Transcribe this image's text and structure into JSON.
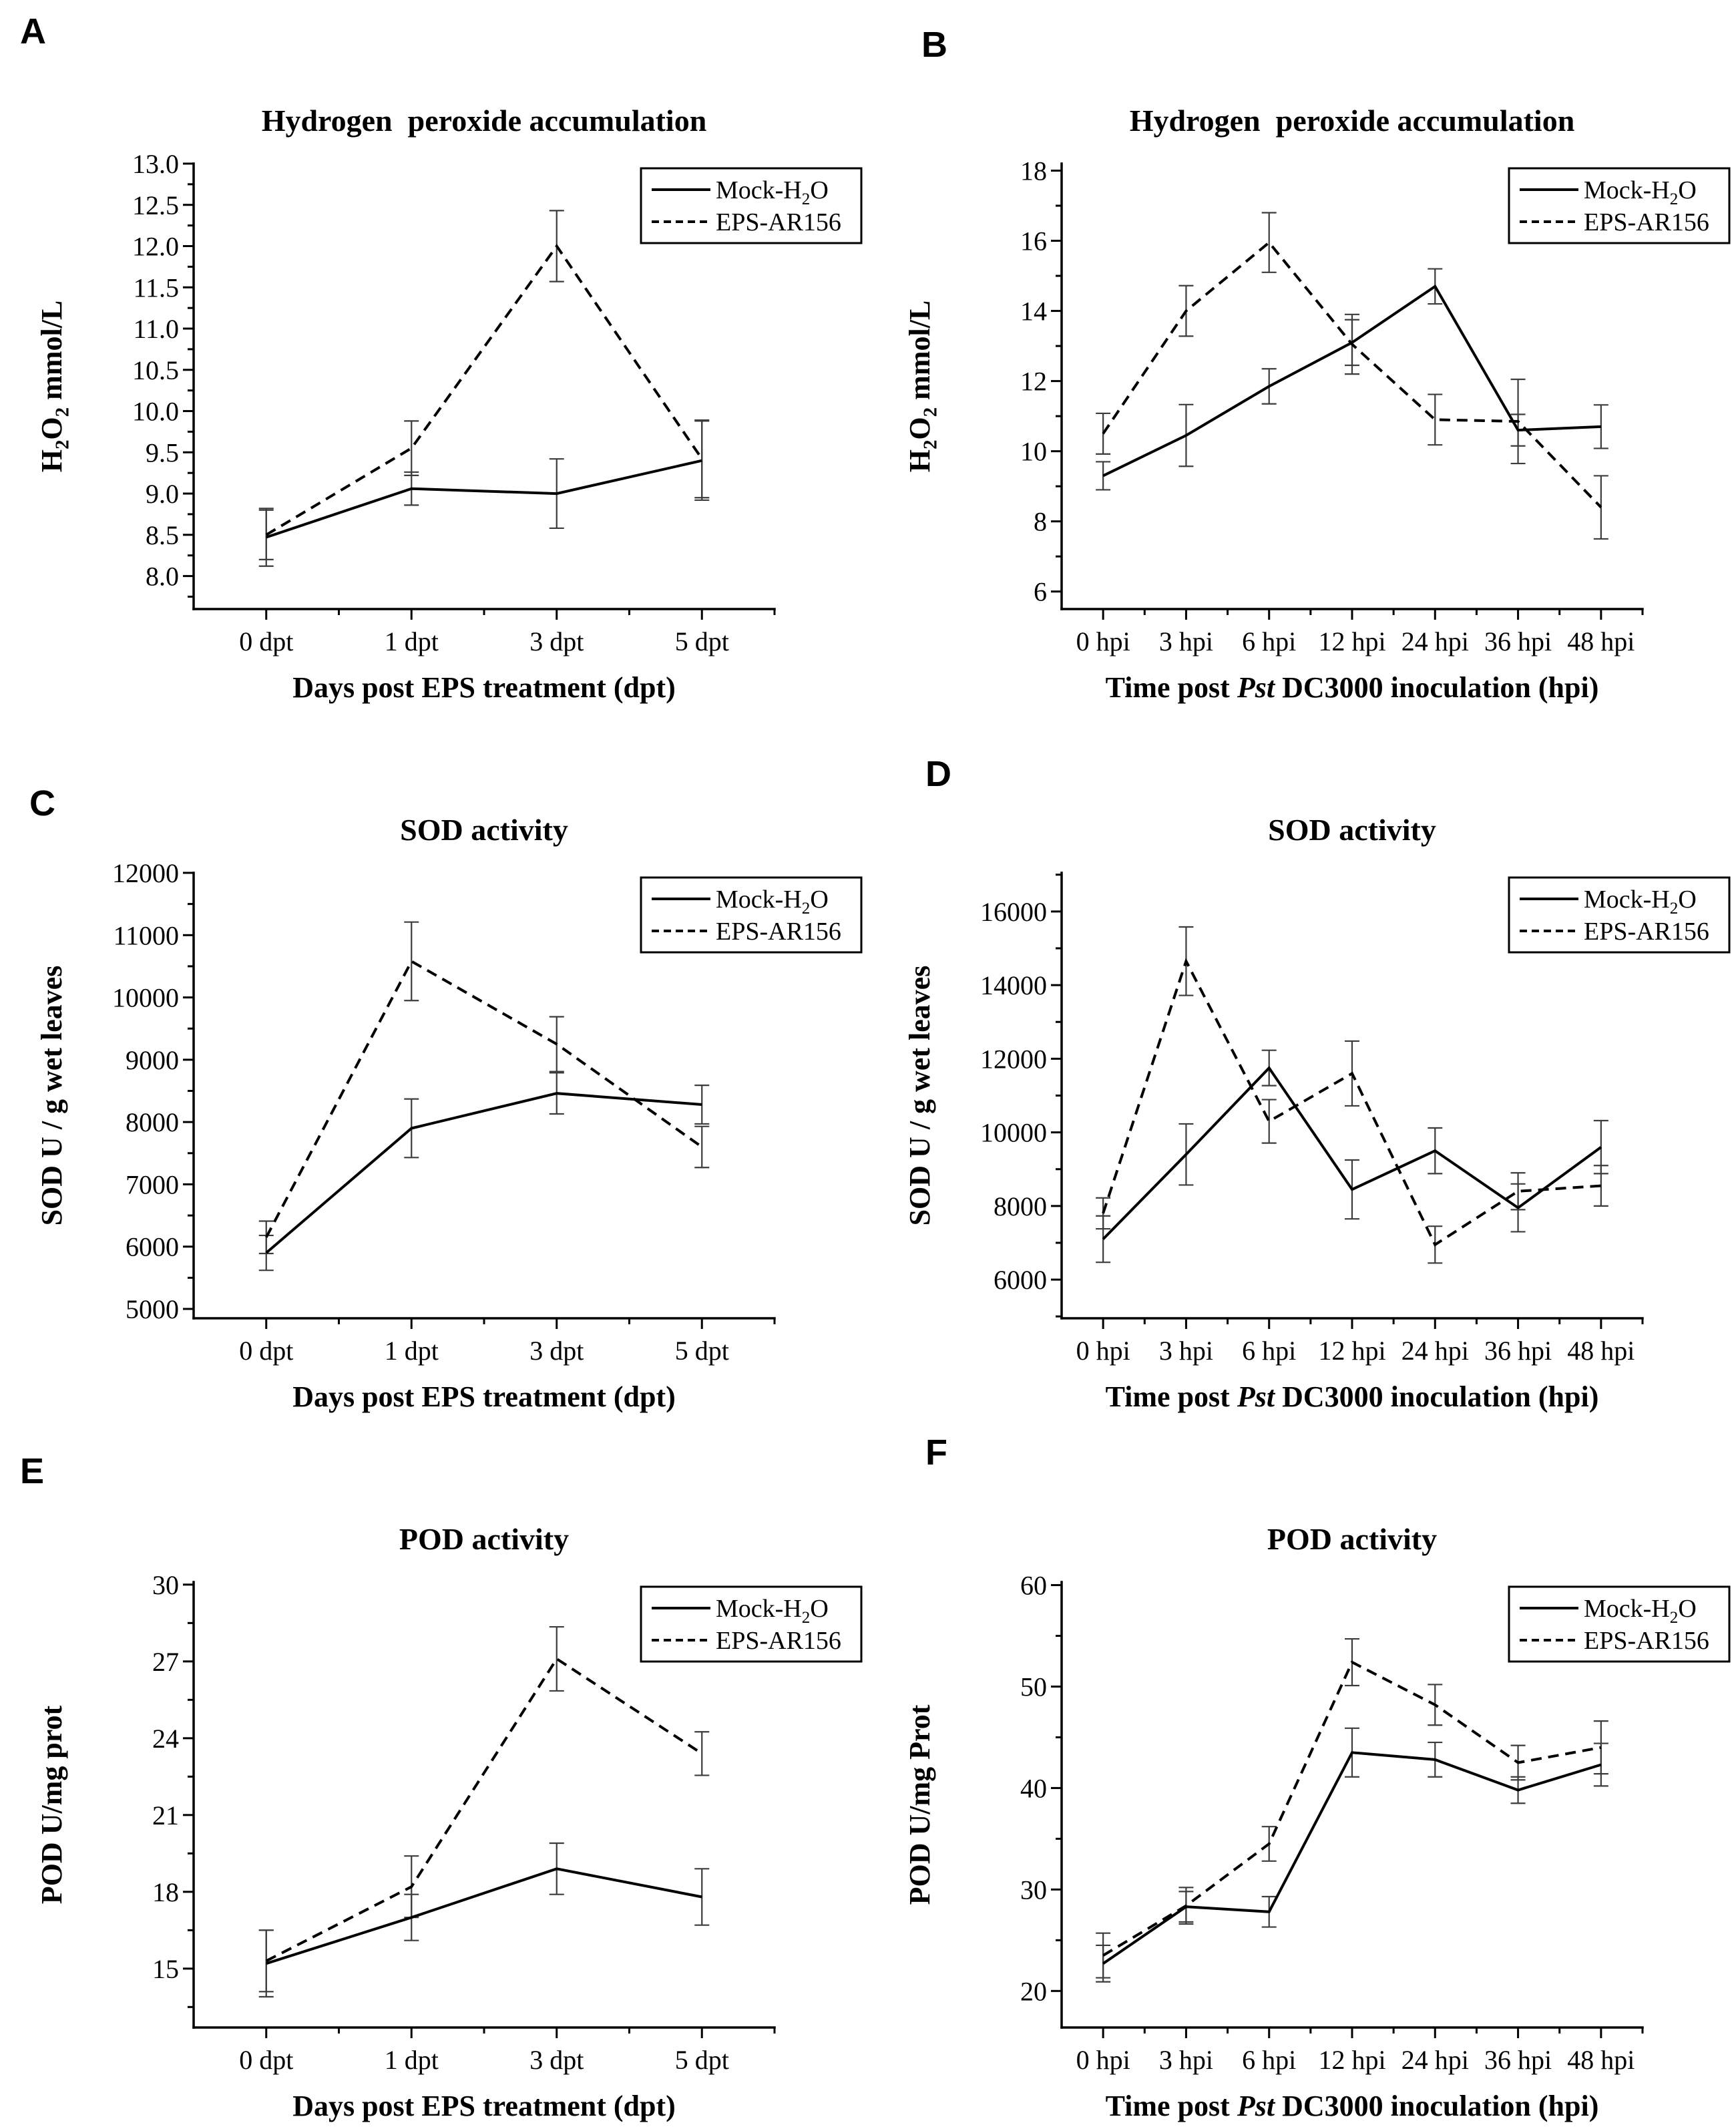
{
  "figure": {
    "background": "#ffffff",
    "colors": {
      "series": "#000000",
      "error_bar": "#3c3c3c",
      "axis": "#000000",
      "text": "#000000",
      "legend_bg": "#ffffff",
      "legend_border": "#000000"
    },
    "legend": {
      "position": "top-right",
      "entries": [
        {
          "label": "Mock-H~2~O",
          "line_style": "solid"
        },
        {
          "label": "EPS-AR156",
          "line_style": "dashed"
        }
      ]
    }
  },
  "chart_data": [
    {
      "panel": "A",
      "type": "line",
      "title": "Hydrogen  peroxide accumulation",
      "xlabel": "Days post EPS treatment (dpt)",
      "ylabel": "H~2~O~2~ mmol/L",
      "categories": [
        "0 dpt",
        "1 dpt",
        "3 dpt",
        "5 dpt"
      ],
      "ylim": [
        7.6,
        13.0
      ],
      "yticks": {
        "min": 8.0,
        "max": 13.0,
        "step": 0.5,
        "decimals": 1
      },
      "grid": false,
      "series": [
        {
          "name": "Mock-H2O",
          "line_style": "solid",
          "values": [
            8.47,
            9.06,
            9.0,
            9.4
          ],
          "errors": [
            0.35,
            0.2,
            0.42,
            0.48
          ]
        },
        {
          "name": "EPS-AR156",
          "line_style": "dashed",
          "values": [
            8.5,
            9.55,
            12.0,
            9.42
          ],
          "errors": [
            0.3,
            0.33,
            0.43,
            0.47
          ]
        }
      ]
    },
    {
      "panel": "B",
      "type": "line",
      "title": "Hydrogen  peroxide accumulation",
      "xlabel": "Time post *Pst* DC3000 inoculation (hpi)",
      "ylabel": "H~2~O~2~ mmol/L",
      "categories": [
        "0 hpi",
        "3 hpi",
        "6 hpi",
        "12 hpi",
        "24 hpi",
        "36 hpi",
        "48 hpi"
      ],
      "ylim": [
        5.5,
        18.2
      ],
      "yticks": {
        "min": 6,
        "max": 18,
        "step": 2,
        "decimals": 0
      },
      "grid": false,
      "series": [
        {
          "name": "Mock-H2O",
          "line_style": "solid",
          "values": [
            9.3,
            10.45,
            11.85,
            13.1,
            14.7,
            10.6,
            10.7
          ],
          "errors": [
            0.4,
            0.88,
            0.5,
            0.65,
            0.5,
            0.45,
            0.62
          ]
        },
        {
          "name": "EPS-AR156",
          "line_style": "dashed",
          "values": [
            10.5,
            14.0,
            15.95,
            13.05,
            10.9,
            10.85,
            8.4
          ],
          "errors": [
            0.58,
            0.72,
            0.85,
            0.85,
            0.72,
            1.2,
            0.9
          ]
        }
      ]
    },
    {
      "panel": "C",
      "type": "line",
      "title": "SOD activity",
      "xlabel": "Days post EPS treatment (dpt)",
      "ylabel": "SOD U / g wet leaves",
      "categories": [
        "0 dpt",
        "1 dpt",
        "3 dpt",
        "5 dpt"
      ],
      "ylim": [
        4850,
        12000
      ],
      "yticks": {
        "min": 5000,
        "max": 12000,
        "step": 1000,
        "decimals": 0
      },
      "grid": false,
      "series": [
        {
          "name": "Mock-H2O",
          "line_style": "solid",
          "values": [
            5900,
            7900,
            8460,
            8280
          ],
          "errors": [
            280,
            470,
            330,
            310
          ]
        },
        {
          "name": "EPS-AR156",
          "line_style": "dashed",
          "values": [
            6150,
            10580,
            9250,
            7600
          ],
          "errors": [
            260,
            630,
            440,
            330
          ]
        }
      ]
    },
    {
      "panel": "D",
      "type": "line",
      "title": "SOD activity",
      "xlabel": "Time post *Pst* DC3000 inoculation (hpi)",
      "ylabel": "SOD U / g wet leaves",
      "categories": [
        "0 hpi",
        "3 hpi",
        "6 hpi",
        "12 hpi",
        "24 hpi",
        "36 hpi",
        "48 hpi"
      ],
      "ylim": [
        4950,
        17050
      ],
      "yticks": {
        "min": 6000,
        "max": 16000,
        "step": 2000,
        "decimals": 0
      },
      "grid": false,
      "series": [
        {
          "name": "Mock-H2O",
          "line_style": "solid",
          "values": [
            7100,
            9400,
            11750,
            8450,
            9500,
            7950,
            9600
          ],
          "errors": [
            630,
            830,
            480,
            800,
            620,
            650,
            720
          ]
        },
        {
          "name": "EPS-AR156",
          "line_style": "dashed",
          "values": [
            7800,
            14650,
            10300,
            11600,
            6950,
            8400,
            8550
          ],
          "errors": [
            420,
            930,
            590,
            880,
            500,
            500,
            550
          ]
        }
      ]
    },
    {
      "panel": "E",
      "type": "line",
      "title": "POD activity",
      "xlabel": "Days post EPS treatment (dpt)",
      "ylabel": "POD U/mg prot",
      "categories": [
        "0 dpt",
        "1 dpt",
        "3 dpt",
        "5 dpt"
      ],
      "ylim": [
        12.7,
        30.1
      ],
      "yticks": {
        "min": 15,
        "max": 30,
        "step": 3,
        "decimals": 0
      },
      "grid": false,
      "series": [
        {
          "name": "Mock-H2O",
          "line_style": "solid",
          "values": [
            15.2,
            17.0,
            18.9,
            17.8
          ],
          "errors": [
            1.3,
            0.9,
            1.0,
            1.1
          ]
        },
        {
          "name": "EPS-AR156",
          "line_style": "dashed",
          "values": [
            15.3,
            18.2,
            27.1,
            23.4
          ],
          "errors": [
            1.2,
            1.2,
            1.25,
            0.85
          ]
        }
      ]
    },
    {
      "panel": "F",
      "type": "line",
      "title": "POD activity",
      "xlabel": "Time post *Pst* DC3000 inoculation (hpi)",
      "ylabel": "POD U/mg Prot",
      "categories": [
        "0 hpi",
        "3 hpi",
        "6 hpi",
        "12 hpi",
        "24 hpi",
        "36 hpi",
        "48 hpi"
      ],
      "ylim": [
        16.4,
        60.3
      ],
      "yticks": {
        "min": 20,
        "max": 60,
        "step": 10,
        "decimals": 0
      },
      "grid": false,
      "series": [
        {
          "name": "Mock-H2O",
          "line_style": "solid",
          "values": [
            22.7,
            28.3,
            27.8,
            43.5,
            42.8,
            39.8,
            42.3
          ],
          "errors": [
            1.8,
            1.5,
            1.5,
            2.4,
            1.7,
            1.3,
            2.1
          ]
        },
        {
          "name": "EPS-AR156",
          "line_style": "dashed",
          "values": [
            23.5,
            28.4,
            34.5,
            52.4,
            48.2,
            42.5,
            44.0
          ],
          "errors": [
            2.2,
            1.8,
            1.7,
            2.3,
            2.0,
            1.7,
            2.6
          ]
        }
      ]
    }
  ]
}
